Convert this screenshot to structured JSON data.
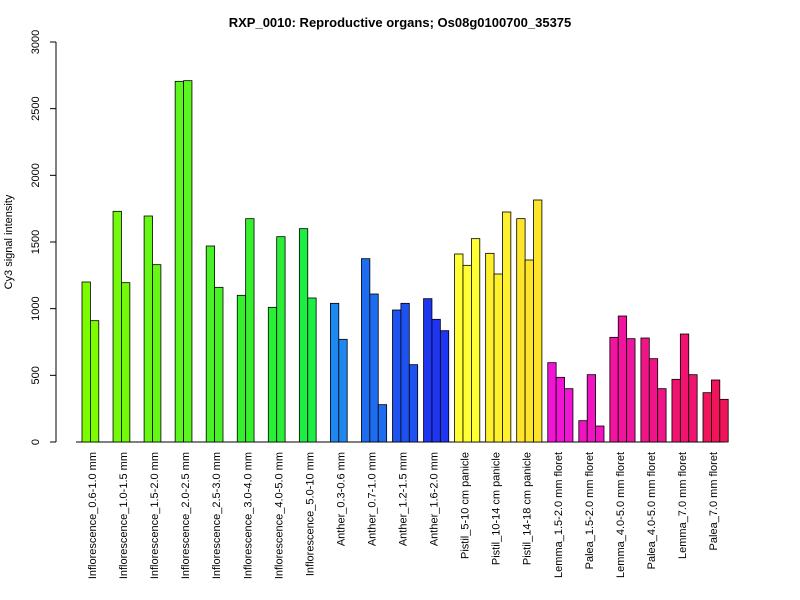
{
  "chart_data": {
    "type": "bar",
    "title": "RXP_0010: Reproductive organs; Os08g0100700_35375",
    "ylabel": "Cy3 signal intensity",
    "xlabel": "",
    "ylim": [
      0,
      3000
    ],
    "yticks": [
      0,
      500,
      1000,
      1500,
      2000,
      2500,
      3000
    ],
    "grid": false,
    "legend": "none",
    "groups": [
      {
        "label": "Inflorescence_0.6-1.0 mm",
        "values": [
          1200,
          910
        ],
        "color": "#7CFC00"
      },
      {
        "label": "Inflorescence_1.0-1.5 mm",
        "values": [
          1730,
          1195
        ],
        "color": "#72FA0A"
      },
      {
        "label": "Inflorescence_1.5-2.0 mm",
        "values": [
          1695,
          1330
        ],
        "color": "#67F716"
      },
      {
        "label": "Inflorescence_2.0-2.5 mm",
        "values": [
          2705,
          2710
        ],
        "color": "#5CF51F"
      },
      {
        "label": "Inflorescence_2.5-3.0 mm",
        "values": [
          1470,
          1160
        ],
        "color": "#48F227"
      },
      {
        "label": "Inflorescence_3.0-4.0 mm",
        "values": [
          1100,
          1675
        ],
        "color": "#36F02E"
      },
      {
        "label": "Inflorescence_4.0-5.0 mm",
        "values": [
          1010,
          1540
        ],
        "color": "#28EE36"
      },
      {
        "label": "Inflorescence_5.0-10 mm",
        "values": [
          1600,
          1080
        ],
        "color": "#1EEE44"
      },
      {
        "label": "Anther_0.3-0.6 mm",
        "values": [
          1040,
          770
        ],
        "color": "#1E88F0"
      },
      {
        "label": "Anther_0.7-1.0 mm",
        "values": [
          1375,
          1110,
          280
        ],
        "color": "#1E6CF0"
      },
      {
        "label": "Anther_1.2-1.5 mm",
        "values": [
          990,
          1040,
          580
        ],
        "color": "#1E52F0"
      },
      {
        "label": "Anther_1.6-2.0 mm",
        "values": [
          1075,
          920,
          835
        ],
        "color": "#1E36F0"
      },
      {
        "label": "Pistil_5-10 cm panicle",
        "values": [
          1410,
          1325,
          1525
        ],
        "color": "#FFFF33"
      },
      {
        "label": "Pistil_10-14 cm panicle",
        "values": [
          1415,
          1260,
          1725
        ],
        "color": "#FFF02E"
      },
      {
        "label": "Pistil_14-18 cm panicle",
        "values": [
          1675,
          1365,
          1815
        ],
        "color": "#FFE52A"
      },
      {
        "label": "Lemma_1.5-2.0 mm floret",
        "values": [
          595,
          485,
          400
        ],
        "color": "#F014D4"
      },
      {
        "label": "Palea_1.5-2.0 mm floret",
        "values": [
          160,
          505,
          120
        ],
        "color": "#F014C0"
      },
      {
        "label": "Lemma_4.0-5.0 mm floret",
        "values": [
          785,
          945,
          775
        ],
        "color": "#F0149E"
      },
      {
        "label": "Palea_4.0-5.0 mm floret",
        "values": [
          780,
          625,
          400
        ],
        "color": "#F01488"
      },
      {
        "label": "Lemma_7.0 mm floret",
        "values": [
          470,
          810,
          505
        ],
        "color": "#F01470"
      },
      {
        "label": "Palea_7.0 mm floret",
        "values": [
          370,
          465,
          320
        ],
        "color": "#F0145A"
      }
    ]
  }
}
